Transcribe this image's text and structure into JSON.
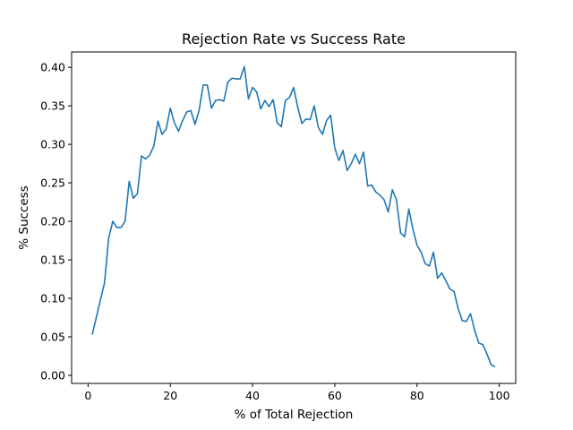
{
  "chart_data": {
    "type": "line",
    "title": "Rejection Rate vs Success Rate",
    "xlabel": "% of Total Rejection",
    "ylabel": "% Success",
    "xlim": [
      -4,
      104
    ],
    "ylim": [
      -0.0105,
      0.42
    ],
    "xticks": [
      0,
      20,
      40,
      60,
      80,
      100
    ],
    "yticks": [
      0.0,
      0.05,
      0.1,
      0.15,
      0.2,
      0.25,
      0.3,
      0.35,
      0.4
    ],
    "xtick_labels": [
      "0",
      "20",
      "40",
      "60",
      "80",
      "100"
    ],
    "ytick_labels": [
      "0.00",
      "0.05",
      "0.10",
      "0.15",
      "0.20",
      "0.25",
      "0.30",
      "0.35",
      "0.40"
    ],
    "grid": false,
    "legend": "none",
    "series": [
      {
        "color": "#1f77b4",
        "x": [
          1,
          2,
          3,
          4,
          5,
          6,
          7,
          8,
          9,
          10,
          11,
          12,
          13,
          14,
          15,
          16,
          17,
          18,
          19,
          20,
          21,
          22,
          23,
          24,
          25,
          26,
          27,
          28,
          29,
          30,
          31,
          32,
          33,
          34,
          35,
          36,
          37,
          38,
          39,
          40,
          41,
          42,
          43,
          44,
          45,
          46,
          47,
          48,
          49,
          50,
          51,
          52,
          53,
          54,
          55,
          56,
          57,
          58,
          59,
          60,
          61,
          62,
          63,
          64,
          65,
          66,
          67,
          68,
          69,
          70,
          71,
          72,
          73,
          74,
          75,
          76,
          77,
          78,
          79,
          80,
          81,
          82,
          83,
          84,
          85,
          86,
          87,
          88,
          89,
          90,
          91,
          92,
          93,
          94,
          95,
          96,
          97,
          98,
          99
        ],
        "y": [
          0.053,
          0.075,
          0.098,
          0.12,
          0.178,
          0.2,
          0.192,
          0.192,
          0.2,
          0.252,
          0.23,
          0.236,
          0.285,
          0.281,
          0.286,
          0.298,
          0.33,
          0.313,
          0.32,
          0.347,
          0.328,
          0.317,
          0.331,
          0.342,
          0.344,
          0.326,
          0.344,
          0.377,
          0.377,
          0.347,
          0.357,
          0.358,
          0.356,
          0.381,
          0.386,
          0.385,
          0.385,
          0.401,
          0.359,
          0.374,
          0.368,
          0.346,
          0.357,
          0.349,
          0.358,
          0.328,
          0.323,
          0.357,
          0.361,
          0.374,
          0.348,
          0.327,
          0.333,
          0.332,
          0.35,
          0.322,
          0.313,
          0.331,
          0.338,
          0.295,
          0.279,
          0.292,
          0.266,
          0.275,
          0.287,
          0.275,
          0.29,
          0.246,
          0.247,
          0.238,
          0.234,
          0.228,
          0.212,
          0.241,
          0.228,
          0.185,
          0.18,
          0.216,
          0.19,
          0.169,
          0.16,
          0.145,
          0.142,
          0.16,
          0.126,
          0.133,
          0.123,
          0.112,
          0.109,
          0.087,
          0.071,
          0.07,
          0.08,
          0.059,
          0.042,
          0.04,
          0.028,
          0.014,
          0.011
        ]
      }
    ]
  }
}
